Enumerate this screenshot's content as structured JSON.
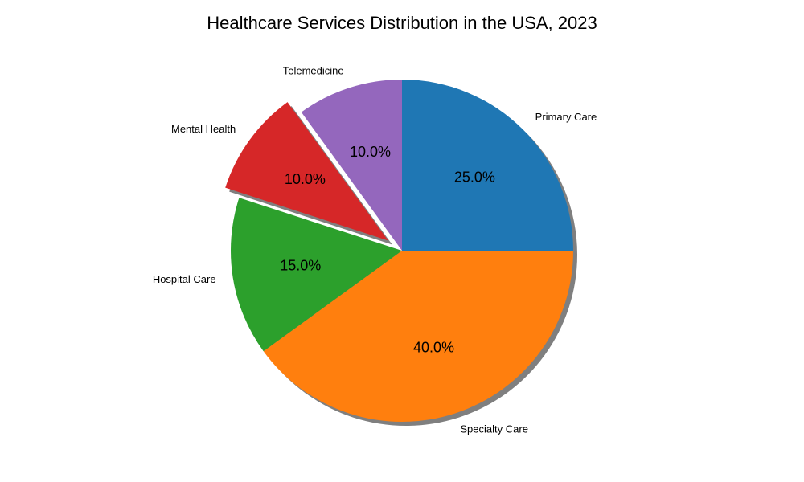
{
  "chart_data": {
    "type": "pie",
    "title": "Healthcare Services Distribution in the USA, 2023",
    "start_angle_deg": 90,
    "direction": "clockwise",
    "shadow": true,
    "slices": [
      {
        "label": "Primary Care",
        "value": 25.0,
        "percent_label": "25.0%",
        "color": "#1f77b4",
        "explode": 0
      },
      {
        "label": "Specialty Care",
        "value": 40.0,
        "percent_label": "40.0%",
        "color": "#ff7f0e",
        "explode": 0
      },
      {
        "label": "Hospital Care",
        "value": 15.0,
        "percent_label": "15.0%",
        "color": "#2ca02c",
        "explode": 0
      },
      {
        "label": "Mental Health",
        "value": 10.0,
        "percent_label": "10.0%",
        "color": "#d62728",
        "explode": 0.1
      },
      {
        "label": "Telemedicine",
        "value": 10.0,
        "percent_label": "10.0%",
        "color": "#9467bd",
        "explode": 0
      }
    ]
  }
}
